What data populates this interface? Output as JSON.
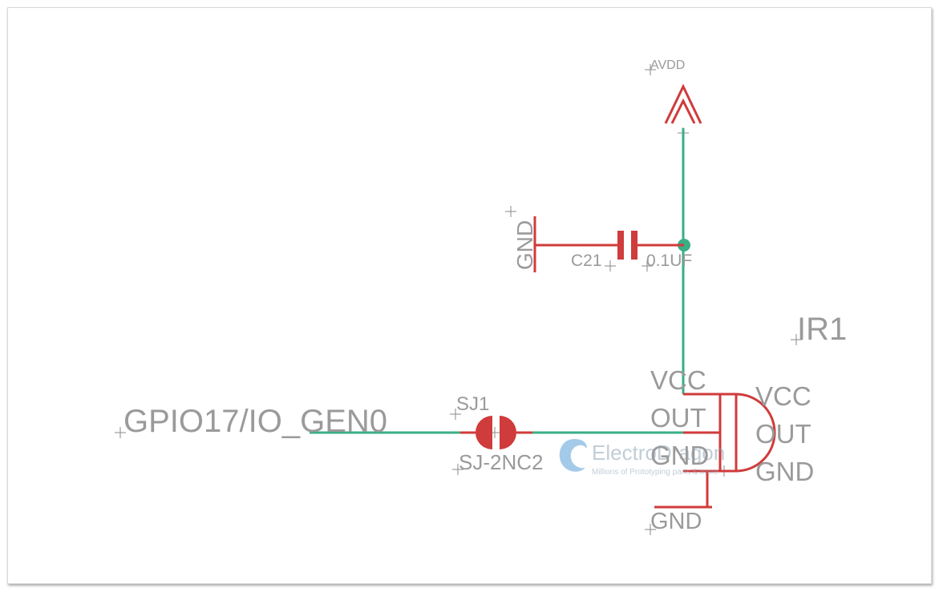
{
  "schematic": {
    "net_labels": {
      "avdd": "AVDD",
      "gnd_left": "GND",
      "gnd_bottom": "GND",
      "gpio": "GPIO17/IO_GEN0"
    },
    "capacitor": {
      "name": "C21",
      "value": "0.1UF"
    },
    "jumper": {
      "name": "SJ1",
      "value": "SJ-2NC2"
    },
    "receiver": {
      "name": "IR1",
      "pin_names": [
        "VCC",
        "OUT",
        "GND"
      ],
      "body_labels": [
        "VCC",
        "OUT",
        "GND"
      ]
    }
  },
  "watermark": {
    "brand": "ElectroDragon",
    "tagline": "Millions of Prototyping parts & more"
  },
  "colors": {
    "symbol": "#d03b3b",
    "wire": "#3aae86",
    "text": "#9a9a9a"
  }
}
